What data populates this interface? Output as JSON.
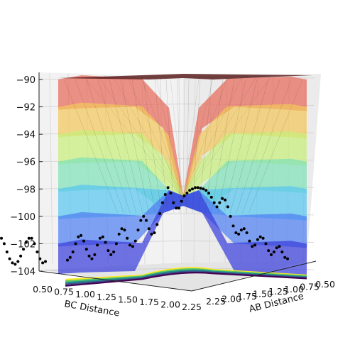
{
  "chart_data": {
    "type": "surface3d",
    "title": "",
    "xlabel": "AB Distance",
    "ylabel": "BC Distance",
    "zlabel": "",
    "x_ticks": [
      "0.50",
      "0.75",
      "1.00",
      "1.25",
      "1.50",
      "1.75",
      "2.00",
      "2.25"
    ],
    "y_ticks": [
      "0.50",
      "0.75",
      "1.00",
      "1.25",
      "1.50",
      "1.75",
      "2.00",
      "2.25"
    ],
    "z_ticks": [
      "−104",
      "−102",
      "−100",
      "−98",
      "−96",
      "−94",
      "−92",
      "−90"
    ],
    "xlim": [
      0.5,
      2.3
    ],
    "ylim": [
      0.5,
      2.3
    ],
    "zlim": [
      -104,
      -90
    ],
    "colormap": "jet",
    "contour_colormap": "viridis",
    "grid": true,
    "surface_bands": [
      {
        "z_from": -104,
        "z_to": -102,
        "color": "#3a3fd9"
      },
      {
        "z_from": -102,
        "z_to": -100,
        "color": "#4f7ff2"
      },
      {
        "z_from": -100,
        "z_to": -98,
        "color": "#59c6f0"
      },
      {
        "z_from": -98,
        "z_to": -96,
        "color": "#7fe0b8"
      },
      {
        "z_from": -96,
        "z_to": -94,
        "color": "#c8ef7c"
      },
      {
        "z_from": -94,
        "z_to": -92,
        "color": "#f2c85c"
      },
      {
        "z_from": -92,
        "z_to": -90,
        "color": "#e86a5a"
      }
    ],
    "trajectory": {
      "name": "",
      "color": "#000000",
      "points": [
        {
          "step": 0,
          "z": -103.2
        },
        {
          "step": 1,
          "z": -103.0
        },
        {
          "step": 2,
          "z": -102.6
        },
        {
          "step": 3,
          "z": -102.0
        },
        {
          "step": 4,
          "z": -101.5
        },
        {
          "step": 5,
          "z": -101.4
        },
        {
          "step": 6,
          "z": -101.8
        },
        {
          "step": 7,
          "z": -102.4
        },
        {
          "step": 8,
          "z": -102.9
        },
        {
          "step": 9,
          "z": -103.1
        },
        {
          "step": 10,
          "z": -102.8
        },
        {
          "step": 11,
          "z": -102.1
        },
        {
          "step": 12,
          "z": -101.6
        },
        {
          "step": 13,
          "z": -101.5
        },
        {
          "step": 14,
          "z": -101.9
        },
        {
          "step": 15,
          "z": -102.5
        },
        {
          "step": 16,
          "z": -102.8
        },
        {
          "step": 17,
          "z": -102.6
        },
        {
          "step": 18,
          "z": -102.0
        },
        {
          "step": 19,
          "z": -101.3
        },
        {
          "step": 20,
          "z": -100.9
        },
        {
          "step": 21,
          "z": -101.0
        },
        {
          "step": 22,
          "z": -101.6
        },
        {
          "step": 23,
          "z": -102.1
        },
        {
          "step": 24,
          "z": -102.2
        },
        {
          "step": 25,
          "z": -101.8
        },
        {
          "step": 26,
          "z": -101.0
        },
        {
          "step": 27,
          "z": -100.3
        },
        {
          "step": 28,
          "z": -100.0
        },
        {
          "step": 29,
          "z": -100.3
        },
        {
          "step": 30,
          "z": -100.9
        },
        {
          "step": 31,
          "z": -101.3
        },
        {
          "step": 32,
          "z": -101.2
        },
        {
          "step": 33,
          "z": -100.6
        },
        {
          "step": 34,
          "z": -99.8
        },
        {
          "step": 35,
          "z": -99.0
        },
        {
          "step": 36,
          "z": -98.4
        },
        {
          "step": 37,
          "z": -97.9
        },
        {
          "step": 38,
          "z": -98.3
        },
        {
          "step": 39,
          "z": -99.0
        },
        {
          "step": 40,
          "z": -99.4
        },
        {
          "step": 41,
          "z": -99.4
        },
        {
          "step": 42,
          "z": -98.9
        },
        {
          "step": 43,
          "z": -98.5
        },
        {
          "step": 44,
          "z": -98.3
        },
        {
          "step": 45,
          "z": -98.1
        },
        {
          "step": 46,
          "z": -98.0
        },
        {
          "step": 47,
          "z": -97.9
        },
        {
          "step": 48,
          "z": -97.9
        },
        {
          "step": 49,
          "z": -97.95
        },
        {
          "step": 50,
          "z": -98.0
        },
        {
          "step": 51,
          "z": -98.1
        },
        {
          "step": 52,
          "z": -98.3
        },
        {
          "step": 53,
          "z": -98.6
        },
        {
          "step": 54,
          "z": -99.0
        },
        {
          "step": 55,
          "z": -99.3
        },
        {
          "step": 56,
          "z": -99.0
        },
        {
          "step": 57,
          "z": -98.7
        },
        {
          "step": 58,
          "z": -98.8
        },
        {
          "step": 59,
          "z": -99.3
        },
        {
          "step": 60,
          "z": -100.0
        },
        {
          "step": 61,
          "z": -100.7
        },
        {
          "step": 62,
          "z": -101.2
        },
        {
          "step": 63,
          "z": -101.3
        },
        {
          "step": 64,
          "z": -101.0
        },
        {
          "step": 65,
          "z": -100.9
        },
        {
          "step": 66,
          "z": -101.2
        },
        {
          "step": 67,
          "z": -101.8
        },
        {
          "step": 68,
          "z": -102.2
        },
        {
          "step": 69,
          "z": -102.1
        },
        {
          "step": 70,
          "z": -101.7
        },
        {
          "step": 71,
          "z": -101.5
        },
        {
          "step": 72,
          "z": -101.6
        },
        {
          "step": 73,
          "z": -102.0
        },
        {
          "step": 74,
          "z": -102.5
        },
        {
          "step": 75,
          "z": -102.8
        },
        {
          "step": 76,
          "z": -102.6
        },
        {
          "step": 77,
          "z": -102.3
        },
        {
          "step": 78,
          "z": -102.2
        },
        {
          "step": 79,
          "z": -102.6
        },
        {
          "step": 80,
          "z": -103.0
        },
        {
          "step": 81,
          "z": -103.1
        }
      ]
    },
    "outside_trace": {
      "color": "#000000",
      "points": [
        {
          "step": 0,
          "z": -101.6
        },
        {
          "step": 1,
          "z": -102.0
        },
        {
          "step": 2,
          "z": -102.6
        },
        {
          "step": 3,
          "z": -103.1
        },
        {
          "step": 4,
          "z": -103.4
        },
        {
          "step": 5,
          "z": -103.5
        },
        {
          "step": 6,
          "z": -103.3
        },
        {
          "step": 7,
          "z": -102.9
        },
        {
          "step": 8,
          "z": -102.4
        },
        {
          "step": 9,
          "z": -101.9
        },
        {
          "step": 10,
          "z": -101.6
        },
        {
          "step": 11,
          "z": -101.6
        },
        {
          "step": 12,
          "z": -102.0
        },
        {
          "step": 13,
          "z": -102.6
        },
        {
          "step": 14,
          "z": -103.1
        },
        {
          "step": 15,
          "z": -103.4
        },
        {
          "step": 16,
          "z": -103.3
        }
      ]
    }
  }
}
